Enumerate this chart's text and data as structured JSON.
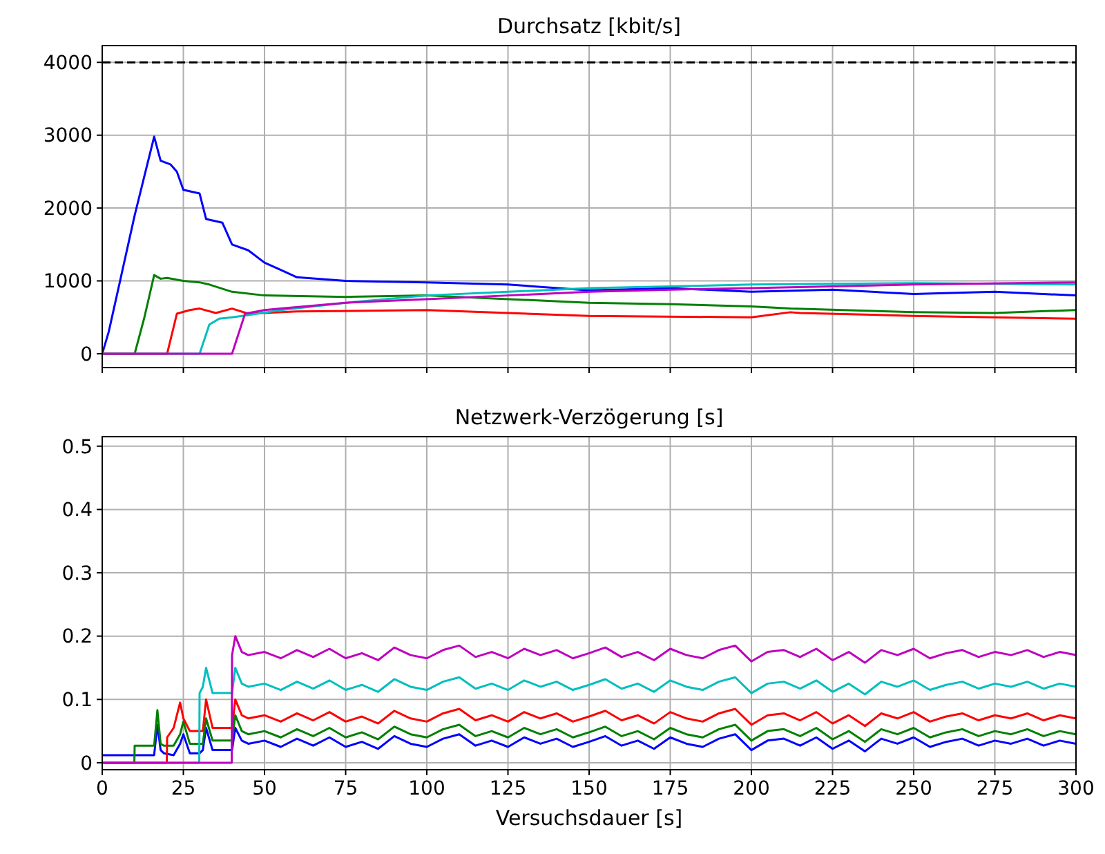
{
  "chart_data": [
    {
      "type": "line",
      "title": "Durchsatz [kbit/s]",
      "xlim": [
        0,
        300
      ],
      "xticks": [
        0,
        25,
        50,
        75,
        100,
        125,
        150,
        175,
        200,
        225,
        250,
        275,
        300
      ],
      "ylim": [
        -190,
        4230
      ],
      "yticks": [
        0,
        1000,
        2000,
        3000,
        4000
      ],
      "grid": true,
      "tick_labels": "y",
      "line_style": "solid",
      "ref_lines": [
        {
          "axis": "y",
          "value": 4000,
          "color": "#000000",
          "line_style": "dashed"
        }
      ],
      "series": [
        {
          "color": "#0000ff",
          "x": [
            0,
            2,
            5,
            10,
            16,
            18,
            21,
            23,
            25,
            30,
            32,
            37,
            40,
            45,
            50,
            55,
            60,
            75,
            100,
            125,
            150,
            175,
            200,
            225,
            250,
            275,
            300
          ],
          "values": [
            0,
            300,
            900,
            1900,
            2980,
            2650,
            2600,
            2500,
            2250,
            2200,
            1850,
            1800,
            1500,
            1420,
            1250,
            1150,
            1050,
            1000,
            980,
            950,
            870,
            900,
            850,
            880,
            820,
            850,
            800
          ]
        },
        {
          "color": "#008000",
          "x": [
            0,
            10,
            13,
            16,
            18,
            20,
            25,
            30,
            33,
            40,
            50,
            75,
            100,
            125,
            150,
            175,
            200,
            212,
            250,
            275,
            300
          ],
          "values": [
            0,
            0,
            500,
            1080,
            1030,
            1040,
            1000,
            980,
            950,
            850,
            800,
            780,
            800,
            750,
            700,
            680,
            650,
            620,
            570,
            560,
            600
          ]
        },
        {
          "color": "#ff0000",
          "x": [
            0,
            20,
            23,
            27,
            30,
            35,
            40,
            45,
            60,
            100,
            125,
            150,
            200,
            212,
            215,
            250,
            300
          ],
          "values": [
            0,
            0,
            550,
            600,
            620,
            560,
            620,
            550,
            580,
            600,
            560,
            520,
            500,
            570,
            560,
            520,
            480
          ]
        },
        {
          "color": "#00bfbf",
          "x": [
            0,
            30,
            33,
            36,
            40,
            45,
            55,
            75,
            100,
            125,
            150,
            200,
            250,
            300
          ],
          "values": [
            0,
            0,
            400,
            480,
            500,
            530,
            600,
            700,
            800,
            850,
            900,
            950,
            970,
            950
          ]
        },
        {
          "color": "#bf00bf",
          "x": [
            0,
            40,
            44,
            50,
            55,
            75,
            100,
            125,
            150,
            175,
            200,
            250,
            300
          ],
          "values": [
            0,
            0,
            550,
            600,
            620,
            700,
            750,
            800,
            850,
            880,
            900,
            950,
            980
          ]
        }
      ]
    },
    {
      "type": "line",
      "title": "Netzwerk-Verzögerung [s]",
      "xlabel": "Versuchsdauer [s]",
      "xlim": [
        0,
        300
      ],
      "xticks": [
        0,
        25,
        50,
        75,
        100,
        125,
        150,
        175,
        200,
        225,
        250,
        275,
        300
      ],
      "ylim": [
        -0.011,
        0.515
      ],
      "yticks": [
        0,
        0.1,
        0.2,
        0.3,
        0.4,
        0.5
      ],
      "grid": true,
      "line_style": "solid",
      "series": [
        {
          "color": "#0000ff",
          "x": [
            0,
            16,
            17,
            18,
            19,
            22,
            24,
            25,
            27,
            30,
            31,
            32,
            34,
            40,
            41,
            43,
            45,
            50,
            55,
            60,
            65,
            70,
            75,
            80,
            85,
            90,
            95,
            100,
            105,
            110,
            115,
            120,
            125,
            130,
            135,
            140,
            145,
            150,
            155,
            160,
            165,
            170,
            175,
            180,
            185,
            190,
            195,
            200,
            205,
            210,
            215,
            220,
            225,
            230,
            235,
            240,
            245,
            250,
            255,
            260,
            265,
            270,
            275,
            280,
            285,
            290,
            295,
            300
          ],
          "values": [
            0.012,
            0.012,
            0.06,
            0.02,
            0.015,
            0.012,
            0.03,
            0.045,
            0.015,
            0.015,
            0.02,
            0.055,
            0.02,
            0.02,
            0.055,
            0.035,
            0.03,
            0.035,
            0.025,
            0.038,
            0.027,
            0.04,
            0.025,
            0.033,
            0.022,
            0.042,
            0.03,
            0.025,
            0.038,
            0.045,
            0.027,
            0.035,
            0.025,
            0.04,
            0.03,
            0.038,
            0.025,
            0.033,
            0.042,
            0.027,
            0.035,
            0.022,
            0.04,
            0.03,
            0.025,
            0.038,
            0.045,
            0.02,
            0.035,
            0.038,
            0.027,
            0.04,
            0.022,
            0.035,
            0.018,
            0.038,
            0.03,
            0.04,
            0.025,
            0.033,
            0.038,
            0.027,
            0.035,
            0.03,
            0.038,
            0.027,
            0.035,
            0.03
          ]
        },
        {
          "color": "#008000",
          "x": [
            0,
            9.9,
            10,
            16,
            17,
            18,
            19,
            22,
            24,
            25,
            27,
            31,
            32,
            34,
            40,
            41,
            43,
            45,
            50,
            55,
            60,
            65,
            70,
            75,
            80,
            85,
            90,
            95,
            100,
            105,
            110,
            115,
            120,
            125,
            130,
            135,
            140,
            145,
            150,
            155,
            160,
            165,
            170,
            175,
            180,
            185,
            190,
            195,
            200,
            205,
            210,
            215,
            220,
            225,
            230,
            235,
            240,
            245,
            250,
            255,
            260,
            265,
            270,
            275,
            280,
            285,
            290,
            295,
            300
          ],
          "values": [
            0,
            0,
            0.027,
            0.027,
            0.083,
            0.03,
            0.027,
            0.027,
            0.045,
            0.065,
            0.03,
            0.03,
            0.07,
            0.035,
            0.035,
            0.075,
            0.05,
            0.045,
            0.05,
            0.04,
            0.053,
            0.042,
            0.055,
            0.04,
            0.048,
            0.037,
            0.057,
            0.045,
            0.04,
            0.053,
            0.06,
            0.042,
            0.05,
            0.04,
            0.055,
            0.045,
            0.053,
            0.04,
            0.048,
            0.057,
            0.042,
            0.05,
            0.037,
            0.055,
            0.045,
            0.04,
            0.053,
            0.06,
            0.035,
            0.05,
            0.053,
            0.042,
            0.055,
            0.037,
            0.05,
            0.033,
            0.053,
            0.045,
            0.055,
            0.04,
            0.048,
            0.053,
            0.042,
            0.05,
            0.045,
            0.053,
            0.042,
            0.05,
            0.045
          ]
        },
        {
          "color": "#ff0000",
          "x": [
            0,
            19.9,
            20,
            22,
            24,
            25,
            27,
            31,
            32,
            34,
            40,
            41,
            43,
            45,
            50,
            55,
            60,
            65,
            70,
            75,
            80,
            85,
            90,
            95,
            100,
            105,
            110,
            115,
            120,
            125,
            130,
            135,
            140,
            145,
            150,
            155,
            160,
            165,
            170,
            175,
            180,
            185,
            190,
            195,
            200,
            205,
            210,
            215,
            220,
            225,
            230,
            235,
            240,
            245,
            250,
            255,
            260,
            265,
            270,
            275,
            280,
            285,
            290,
            295,
            300
          ],
          "values": [
            0,
            0,
            0.04,
            0.055,
            0.095,
            0.07,
            0.05,
            0.05,
            0.1,
            0.055,
            0.055,
            0.1,
            0.075,
            0.07,
            0.075,
            0.065,
            0.078,
            0.067,
            0.08,
            0.065,
            0.073,
            0.062,
            0.082,
            0.07,
            0.065,
            0.078,
            0.085,
            0.067,
            0.075,
            0.065,
            0.08,
            0.07,
            0.078,
            0.065,
            0.073,
            0.082,
            0.067,
            0.075,
            0.062,
            0.08,
            0.07,
            0.065,
            0.078,
            0.085,
            0.06,
            0.075,
            0.078,
            0.067,
            0.08,
            0.062,
            0.075,
            0.058,
            0.078,
            0.07,
            0.08,
            0.065,
            0.073,
            0.078,
            0.067,
            0.075,
            0.07,
            0.078,
            0.067,
            0.075,
            0.07
          ]
        },
        {
          "color": "#00bfbf",
          "x": [
            0,
            29.9,
            30,
            31,
            32,
            34,
            40,
            41,
            43,
            45,
            50,
            55,
            60,
            65,
            70,
            75,
            80,
            85,
            90,
            95,
            100,
            105,
            110,
            115,
            120,
            125,
            130,
            135,
            140,
            145,
            150,
            155,
            160,
            165,
            170,
            175,
            180,
            185,
            190,
            195,
            200,
            205,
            210,
            215,
            220,
            225,
            230,
            235,
            240,
            245,
            250,
            255,
            260,
            265,
            270,
            275,
            280,
            285,
            290,
            295,
            300
          ],
          "values": [
            0,
            0,
            0.11,
            0.12,
            0.15,
            0.11,
            0.11,
            0.15,
            0.125,
            0.12,
            0.125,
            0.115,
            0.128,
            0.117,
            0.13,
            0.115,
            0.123,
            0.112,
            0.132,
            0.12,
            0.115,
            0.128,
            0.135,
            0.117,
            0.125,
            0.115,
            0.13,
            0.12,
            0.128,
            0.115,
            0.123,
            0.132,
            0.117,
            0.125,
            0.112,
            0.13,
            0.12,
            0.115,
            0.128,
            0.135,
            0.11,
            0.125,
            0.128,
            0.117,
            0.13,
            0.112,
            0.125,
            0.108,
            0.128,
            0.12,
            0.13,
            0.115,
            0.123,
            0.128,
            0.117,
            0.125,
            0.12,
            0.128,
            0.117,
            0.125,
            0.12
          ]
        },
        {
          "color": "#bf00bf",
          "x": [
            0,
            39.9,
            40,
            41,
            43,
            45,
            50,
            55,
            60,
            65,
            70,
            75,
            80,
            85,
            90,
            95,
            100,
            105,
            110,
            115,
            120,
            125,
            130,
            135,
            140,
            145,
            150,
            155,
            160,
            165,
            170,
            175,
            180,
            185,
            190,
            195,
            200,
            205,
            210,
            215,
            220,
            225,
            230,
            235,
            240,
            245,
            250,
            255,
            260,
            265,
            270,
            275,
            280,
            285,
            290,
            295,
            300
          ],
          "values": [
            0,
            0,
            0.17,
            0.2,
            0.175,
            0.17,
            0.175,
            0.165,
            0.178,
            0.167,
            0.18,
            0.165,
            0.173,
            0.162,
            0.182,
            0.17,
            0.165,
            0.178,
            0.185,
            0.167,
            0.175,
            0.165,
            0.18,
            0.17,
            0.178,
            0.165,
            0.173,
            0.182,
            0.167,
            0.175,
            0.162,
            0.18,
            0.17,
            0.165,
            0.178,
            0.185,
            0.16,
            0.175,
            0.178,
            0.167,
            0.18,
            0.162,
            0.175,
            0.158,
            0.178,
            0.17,
            0.18,
            0.165,
            0.173,
            0.178,
            0.167,
            0.175,
            0.17,
            0.178,
            0.167,
            0.175,
            0.17
          ]
        }
      ]
    }
  ]
}
